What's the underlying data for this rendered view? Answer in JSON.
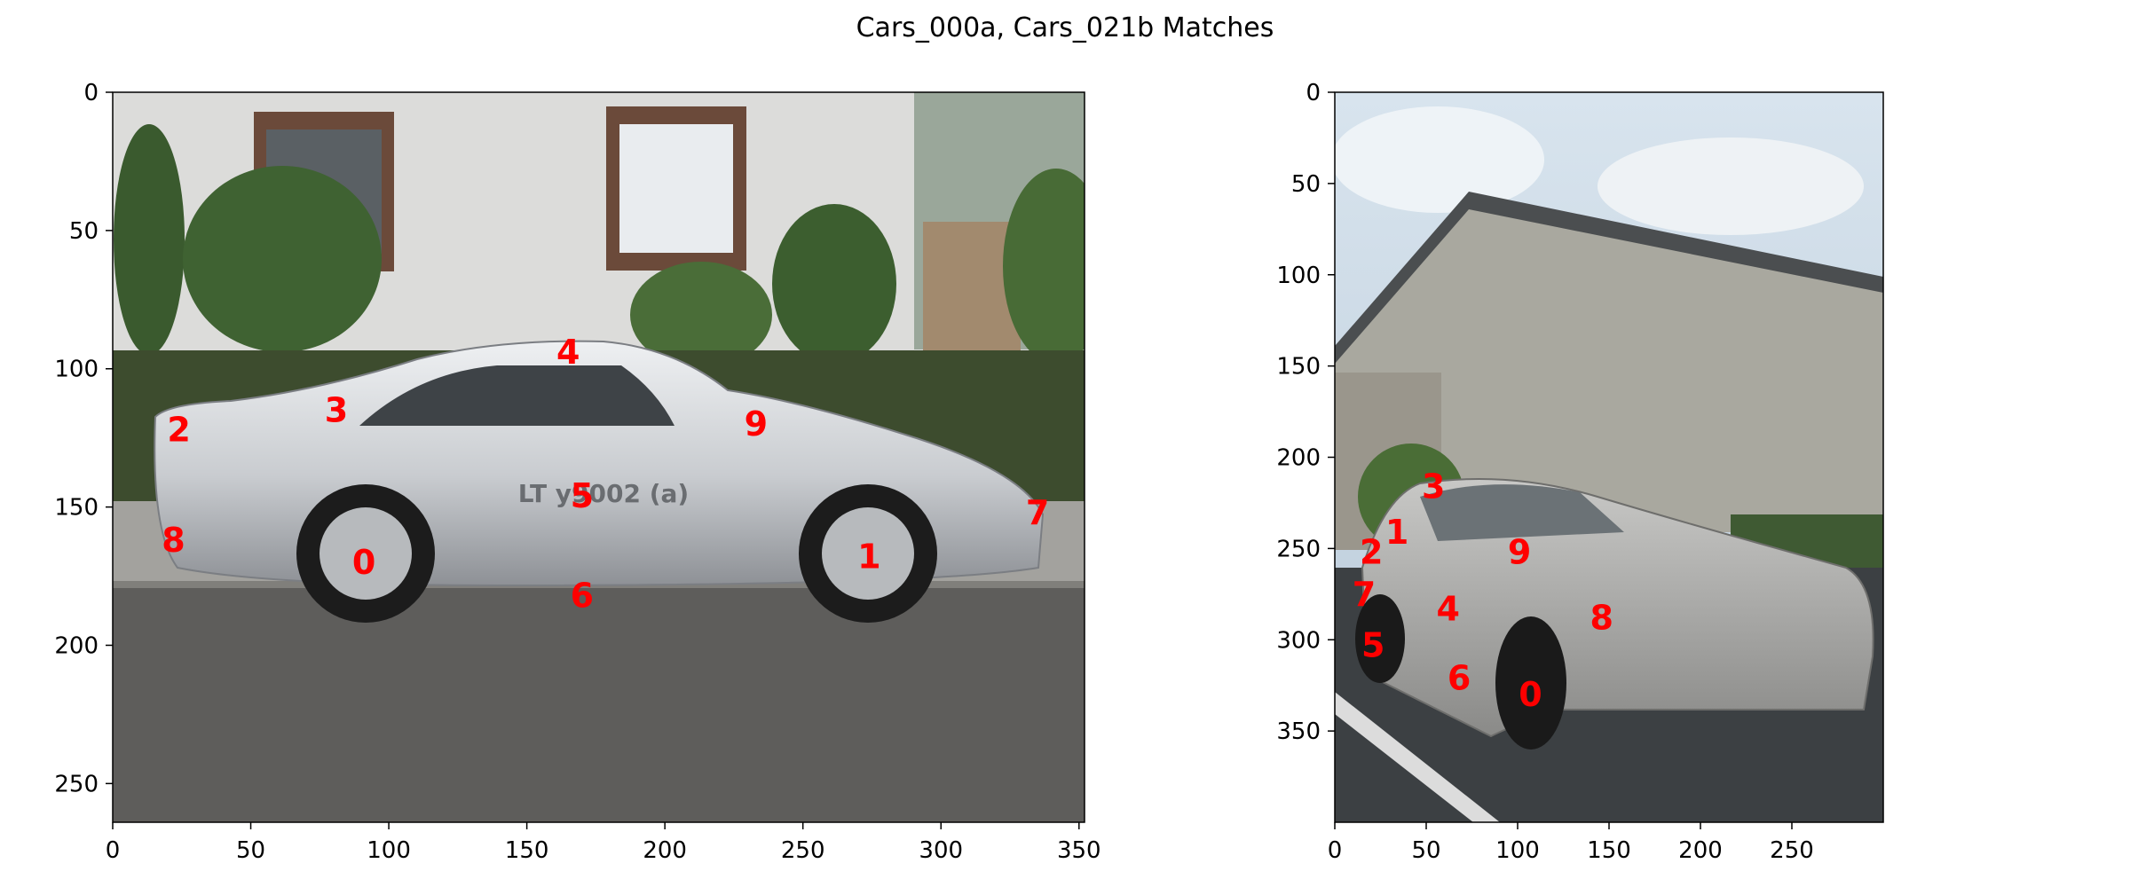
{
  "figure": {
    "title": "Cars_000a, Cars_021b Matches"
  },
  "colors": {
    "match_label": "#ff0000",
    "axis": "#000000",
    "background": "#ffffff"
  },
  "chart_data": [
    {
      "type": "scatter",
      "name": "Cars_000a",
      "image_content": "silver Porsche 959 parked at curb in front of white house with hedges",
      "xlim": [
        0,
        352
      ],
      "ylim": [
        264,
        0
      ],
      "x_ticks": [
        0,
        50,
        100,
        150,
        200,
        250,
        300,
        350
      ],
      "y_ticks": [
        0,
        50,
        100,
        150,
        200,
        250
      ],
      "grid": false,
      "points": [
        {
          "label": "0",
          "x": 91,
          "y": 170
        },
        {
          "label": "1",
          "x": 274,
          "y": 168
        },
        {
          "label": "2",
          "x": 24,
          "y": 122
        },
        {
          "label": "3",
          "x": 81,
          "y": 115
        },
        {
          "label": "4",
          "x": 165,
          "y": 94
        },
        {
          "label": "5",
          "x": 170,
          "y": 146
        },
        {
          "label": "6",
          "x": 170,
          "y": 182
        },
        {
          "label": "7",
          "x": 335,
          "y": 152
        },
        {
          "label": "8",
          "x": 22,
          "y": 162
        },
        {
          "label": "9",
          "x": 233,
          "y": 120
        }
      ]
    },
    {
      "type": "scatter",
      "name": "Cars_021b",
      "image_content": "silver sedan parked in lot in front of grey building",
      "xlim": [
        0,
        300
      ],
      "ylim": [
        400,
        0
      ],
      "x_ticks": [
        0,
        50,
        100,
        150,
        200,
        250
      ],
      "y_ticks": [
        0,
        50,
        100,
        150,
        200,
        250,
        300,
        350
      ],
      "grid": false,
      "points": [
        {
          "label": "0",
          "x": 107,
          "y": 330
        },
        {
          "label": "1",
          "x": 34,
          "y": 241
        },
        {
          "label": "2",
          "x": 20,
          "y": 252
        },
        {
          "label": "3",
          "x": 54,
          "y": 216
        },
        {
          "label": "4",
          "x": 62,
          "y": 283
        },
        {
          "label": "5",
          "x": 21,
          "y": 303
        },
        {
          "label": "6",
          "x": 68,
          "y": 321
        },
        {
          "label": "7",
          "x": 16,
          "y": 275
        },
        {
          "label": "8",
          "x": 146,
          "y": 288
        },
        {
          "label": "9",
          "x": 101,
          "y": 252
        }
      ]
    }
  ]
}
